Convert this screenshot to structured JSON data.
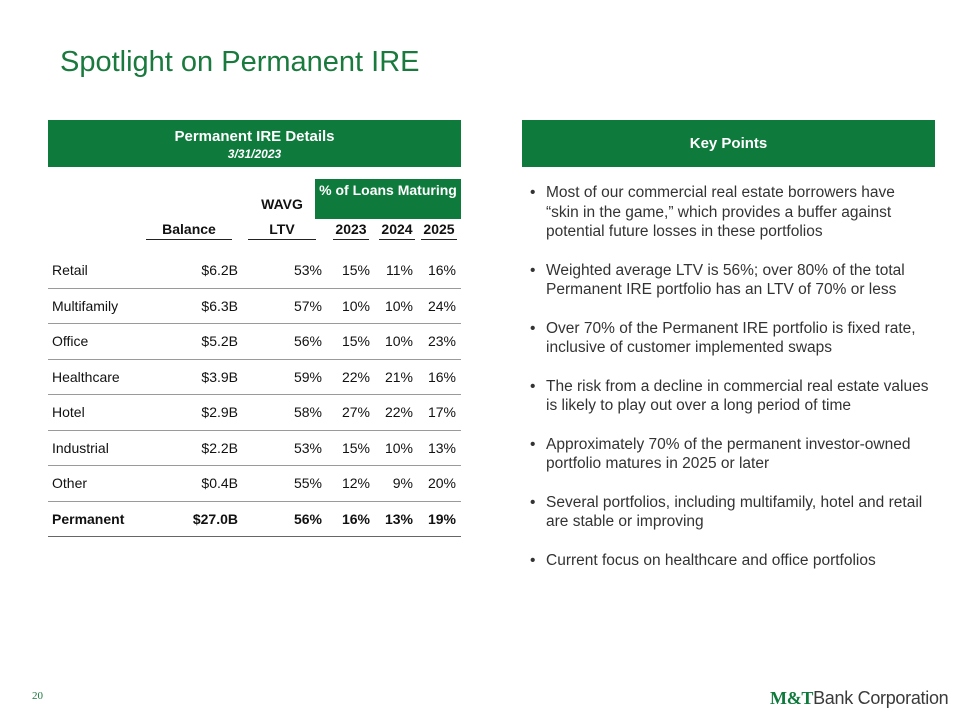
{
  "title": "Spotlight on Permanent IRE",
  "details": {
    "header": "Permanent IRE Details",
    "date": "3/31/2023",
    "loans_header": "% of Loans Maturing",
    "wavg": "WAVG",
    "columns": {
      "balance": "Balance",
      "ltv": "LTV",
      "y2023": "2023",
      "y2024": "2024",
      "y2025": "2025"
    },
    "rows": [
      {
        "name": "Retail",
        "balance": "$6.2B",
        "ltv": "53%",
        "y2023": "15%",
        "y2024": "11%",
        "y2025": "16%"
      },
      {
        "name": "Multifamily",
        "balance": "$6.3B",
        "ltv": "57%",
        "y2023": "10%",
        "y2024": "10%",
        "y2025": "24%"
      },
      {
        "name": "Office",
        "balance": "$5.2B",
        "ltv": "56%",
        "y2023": "15%",
        "y2024": "10%",
        "y2025": "23%"
      },
      {
        "name": "Healthcare",
        "balance": "$3.9B",
        "ltv": "59%",
        "y2023": "22%",
        "y2024": "21%",
        "y2025": "16%"
      },
      {
        "name": "Hotel",
        "balance": "$2.9B",
        "ltv": "58%",
        "y2023": "27%",
        "y2024": "22%",
        "y2025": "17%"
      },
      {
        "name": "Industrial",
        "balance": "$2.2B",
        "ltv": "53%",
        "y2023": "15%",
        "y2024": "10%",
        "y2025": "13%"
      },
      {
        "name": "Other",
        "balance": "$0.4B",
        "ltv": "55%",
        "y2023": "12%",
        "y2024": "9%",
        "y2025": "20%"
      }
    ],
    "total": {
      "name": "Permanent",
      "balance": "$27.0B",
      "ltv": "56%",
      "y2023": "16%",
      "y2024": "13%",
      "y2025": "19%"
    }
  },
  "key_points": {
    "header": "Key Points",
    "bullet": "•",
    "items": [
      "Most of our commercial real estate borrowers have “skin in the game,” which provides a buffer against potential future losses in these portfolios",
      "Weighted average LTV is 56%; over 80% of the total Permanent IRE portfolio has an LTV of 70% or less",
      "Over 70% of the Permanent IRE portfolio is fixed rate, inclusive of customer implemented swaps",
      "The risk from a decline in commercial real estate values is likely to play out over a long period of time",
      "Approximately 70% of the permanent investor-owned portfolio matures in 2025 or later",
      "Several portfolios, including multifamily, hotel and retail are stable or improving",
      "Current focus on healthcare and office portfolios"
    ]
  },
  "footer": {
    "page_number": "20",
    "logo_mt": "M&T",
    "logo_rest": "Bank Corporation"
  },
  "colors": {
    "brand_green": "#0e7a3c",
    "title_green": "#1a7a3e"
  }
}
